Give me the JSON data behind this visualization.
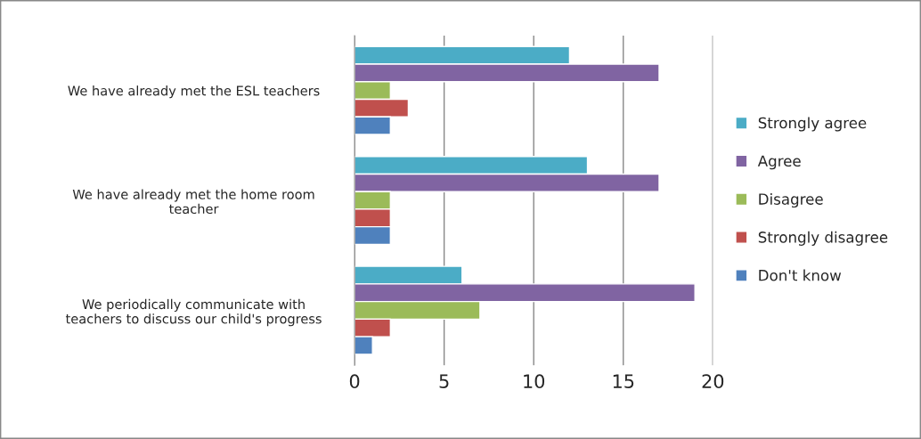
{
  "chart_data": {
    "type": "bar",
    "orientation": "horizontal",
    "categories": [
      "We have already met the ESL teachers",
      "We have already met the home room\nteacher",
      "We periodically communicate with\nteachers to discuss our child's progress"
    ],
    "series": [
      {
        "name": "Strongly agree",
        "color": "#4bacc6",
        "values": [
          12,
          13,
          6
        ]
      },
      {
        "name": "Agree",
        "color": "#8064a2",
        "values": [
          17,
          17,
          19
        ]
      },
      {
        "name": "Disagree",
        "color": "#9bbb59",
        "values": [
          2,
          2,
          7
        ]
      },
      {
        "name": "Strongly disagree",
        "color": "#c0504d",
        "values": [
          3,
          2,
          2
        ]
      },
      {
        "name": "Don't know",
        "color": "#4f81bd",
        "values": [
          2,
          2,
          1
        ]
      }
    ],
    "xlim": [
      0,
      20
    ],
    "xticks": [
      0,
      5,
      10,
      15,
      20
    ],
    "grid": "x",
    "legend": "right"
  }
}
